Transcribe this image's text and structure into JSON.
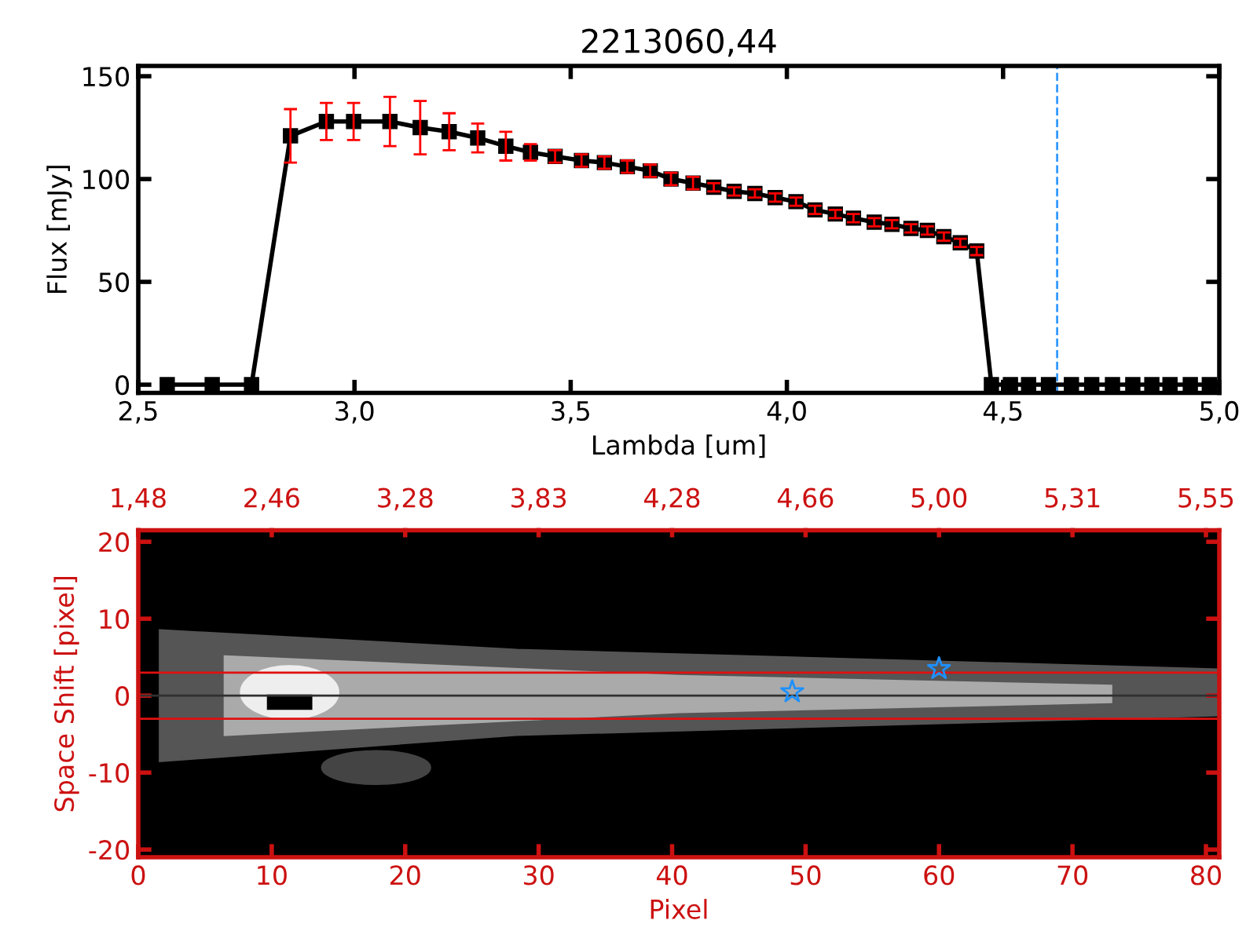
{
  "chart_data": [
    {
      "type": "line",
      "title": "2213060,44",
      "xlabel": "Lambda [um]",
      "ylabel": "Flux [mJy]",
      "xlim": [
        2.5,
        5.0
      ],
      "xticks": [
        {
          "value": 2.5,
          "label": "2,5"
        },
        {
          "value": 3.0,
          "label": "3,0"
        },
        {
          "value": 3.5,
          "label": "3,5"
        },
        {
          "value": 4.0,
          "label": "4,0"
        },
        {
          "value": 4.5,
          "label": "4,5"
        },
        {
          "value": 5.0,
          "label": "5,0"
        }
      ],
      "ylim": [
        -4,
        155
      ],
      "yticks": [
        0,
        50,
        100,
        150
      ],
      "grid": false,
      "marker": "square",
      "line_style": "solid",
      "series": [
        {
          "color": "#000000",
          "x": [
            2.567,
            2.671,
            2.762,
            2.852,
            2.935,
            2.998,
            3.082,
            3.152,
            3.219,
            3.285,
            3.35,
            3.407,
            3.464,
            3.525,
            3.578,
            3.631,
            3.684,
            3.732,
            3.783,
            3.831,
            3.878,
            3.926,
            3.973,
            4.021,
            4.065,
            4.112,
            4.154,
            4.202,
            4.243,
            4.287,
            4.325,
            4.363,
            4.401,
            4.439,
            4.473,
            4.517,
            4.559,
            4.605,
            4.658,
            4.705,
            4.753,
            4.8,
            4.844,
            4.886,
            4.933,
            4.977
          ],
          "values": [
            0,
            0,
            0,
            121,
            128,
            128,
            128,
            125,
            123,
            120,
            116,
            113,
            111,
            109,
            108,
            106,
            104,
            100,
            98,
            96,
            94,
            93,
            91,
            89,
            85,
            83,
            81,
            79,
            78,
            76,
            75,
            72,
            69,
            65,
            0,
            0,
            0,
            0,
            0,
            0,
            0,
            0,
            0,
            0,
            0,
            0
          ],
          "errors": [
            null,
            null,
            null,
            13,
            9,
            9,
            12,
            13,
            9,
            7,
            7,
            4,
            3,
            3,
            3,
            3,
            3,
            3,
            3,
            2,
            2,
            2,
            2,
            2,
            2,
            2,
            2,
            2,
            2,
            2,
            2,
            2,
            2,
            2,
            null,
            null,
            null,
            null,
            null,
            null,
            null,
            null,
            null,
            null,
            null,
            null
          ]
        }
      ],
      "ref_lines": [
        {
          "axis": "x",
          "value": 4.625,
          "color": "#3399ff",
          "line_style": "dashed"
        }
      ]
    },
    {
      "type": "scatter",
      "xlabel": "Pixel",
      "ylabel": "Space Shift [pixel]",
      "xlim": [
        0,
        81
      ],
      "xticks": [
        0,
        10,
        20,
        30,
        40,
        50,
        60,
        70,
        80
      ],
      "annotations": [
        "1,48",
        "2,46",
        "3,28",
        "3,83",
        "4,28",
        "4,66",
        "5,00",
        "5,31",
        "5,55"
      ],
      "ylim": [
        -21,
        21.5
      ],
      "yticks": [
        -20,
        -10,
        0,
        10,
        20
      ],
      "grid": false,
      "marker": "star",
      "series": [
        {
          "color": "#1e90ff",
          "x": [
            49,
            60
          ],
          "values": [
            0.5,
            3.5
          ]
        }
      ],
      "ref_lines": [
        {
          "axis": "y",
          "value": 3,
          "color": "#e01010",
          "line_style": "solid"
        },
        {
          "axis": "y",
          "value": -3,
          "color": "#e01010",
          "line_style": "solid"
        },
        {
          "axis": "y",
          "value": 0,
          "color": "#303030",
          "line_style": "solid"
        }
      ]
    }
  ]
}
